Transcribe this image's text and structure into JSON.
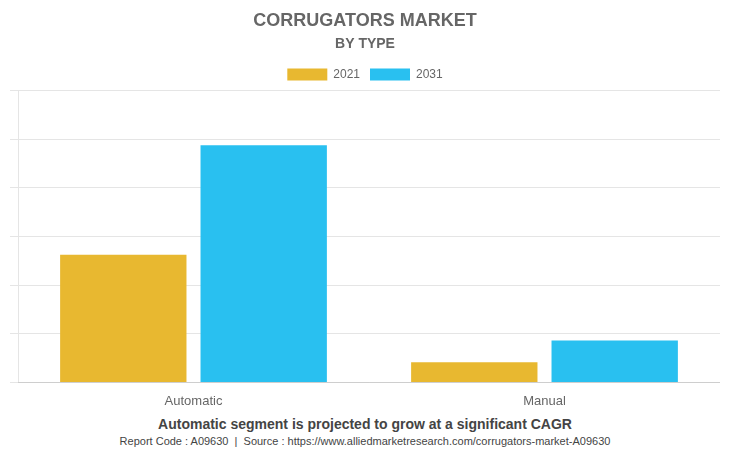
{
  "chart_data": {
    "type": "bar",
    "title": "CORRUGATORS MARKET",
    "subtitle": "BY TYPE",
    "categories": [
      "Automatic",
      "Manual"
    ],
    "series": [
      {
        "name": "2021",
        "color": "#E8B830",
        "values": [
          3.5,
          0.55
        ]
      },
      {
        "name": "2031",
        "color": "#29C0F0",
        "values": [
          6.5,
          1.15
        ]
      }
    ],
    "ylim": [
      0,
      8.0
    ],
    "yticks": [
      0,
      1.3333333333333333,
      2.6666666666666665,
      4,
      5.333333333333333,
      6.666666666666667,
      8
    ],
    "grid": true,
    "legend": "top",
    "tick_labels": "x",
    "annotations": [
      "Automatic segment is projected to grow at a significant CAGR",
      "Report Code : A09630  |  Source : https://www.alliedmarketresearch.com/corrugators-market-A09630"
    ]
  }
}
